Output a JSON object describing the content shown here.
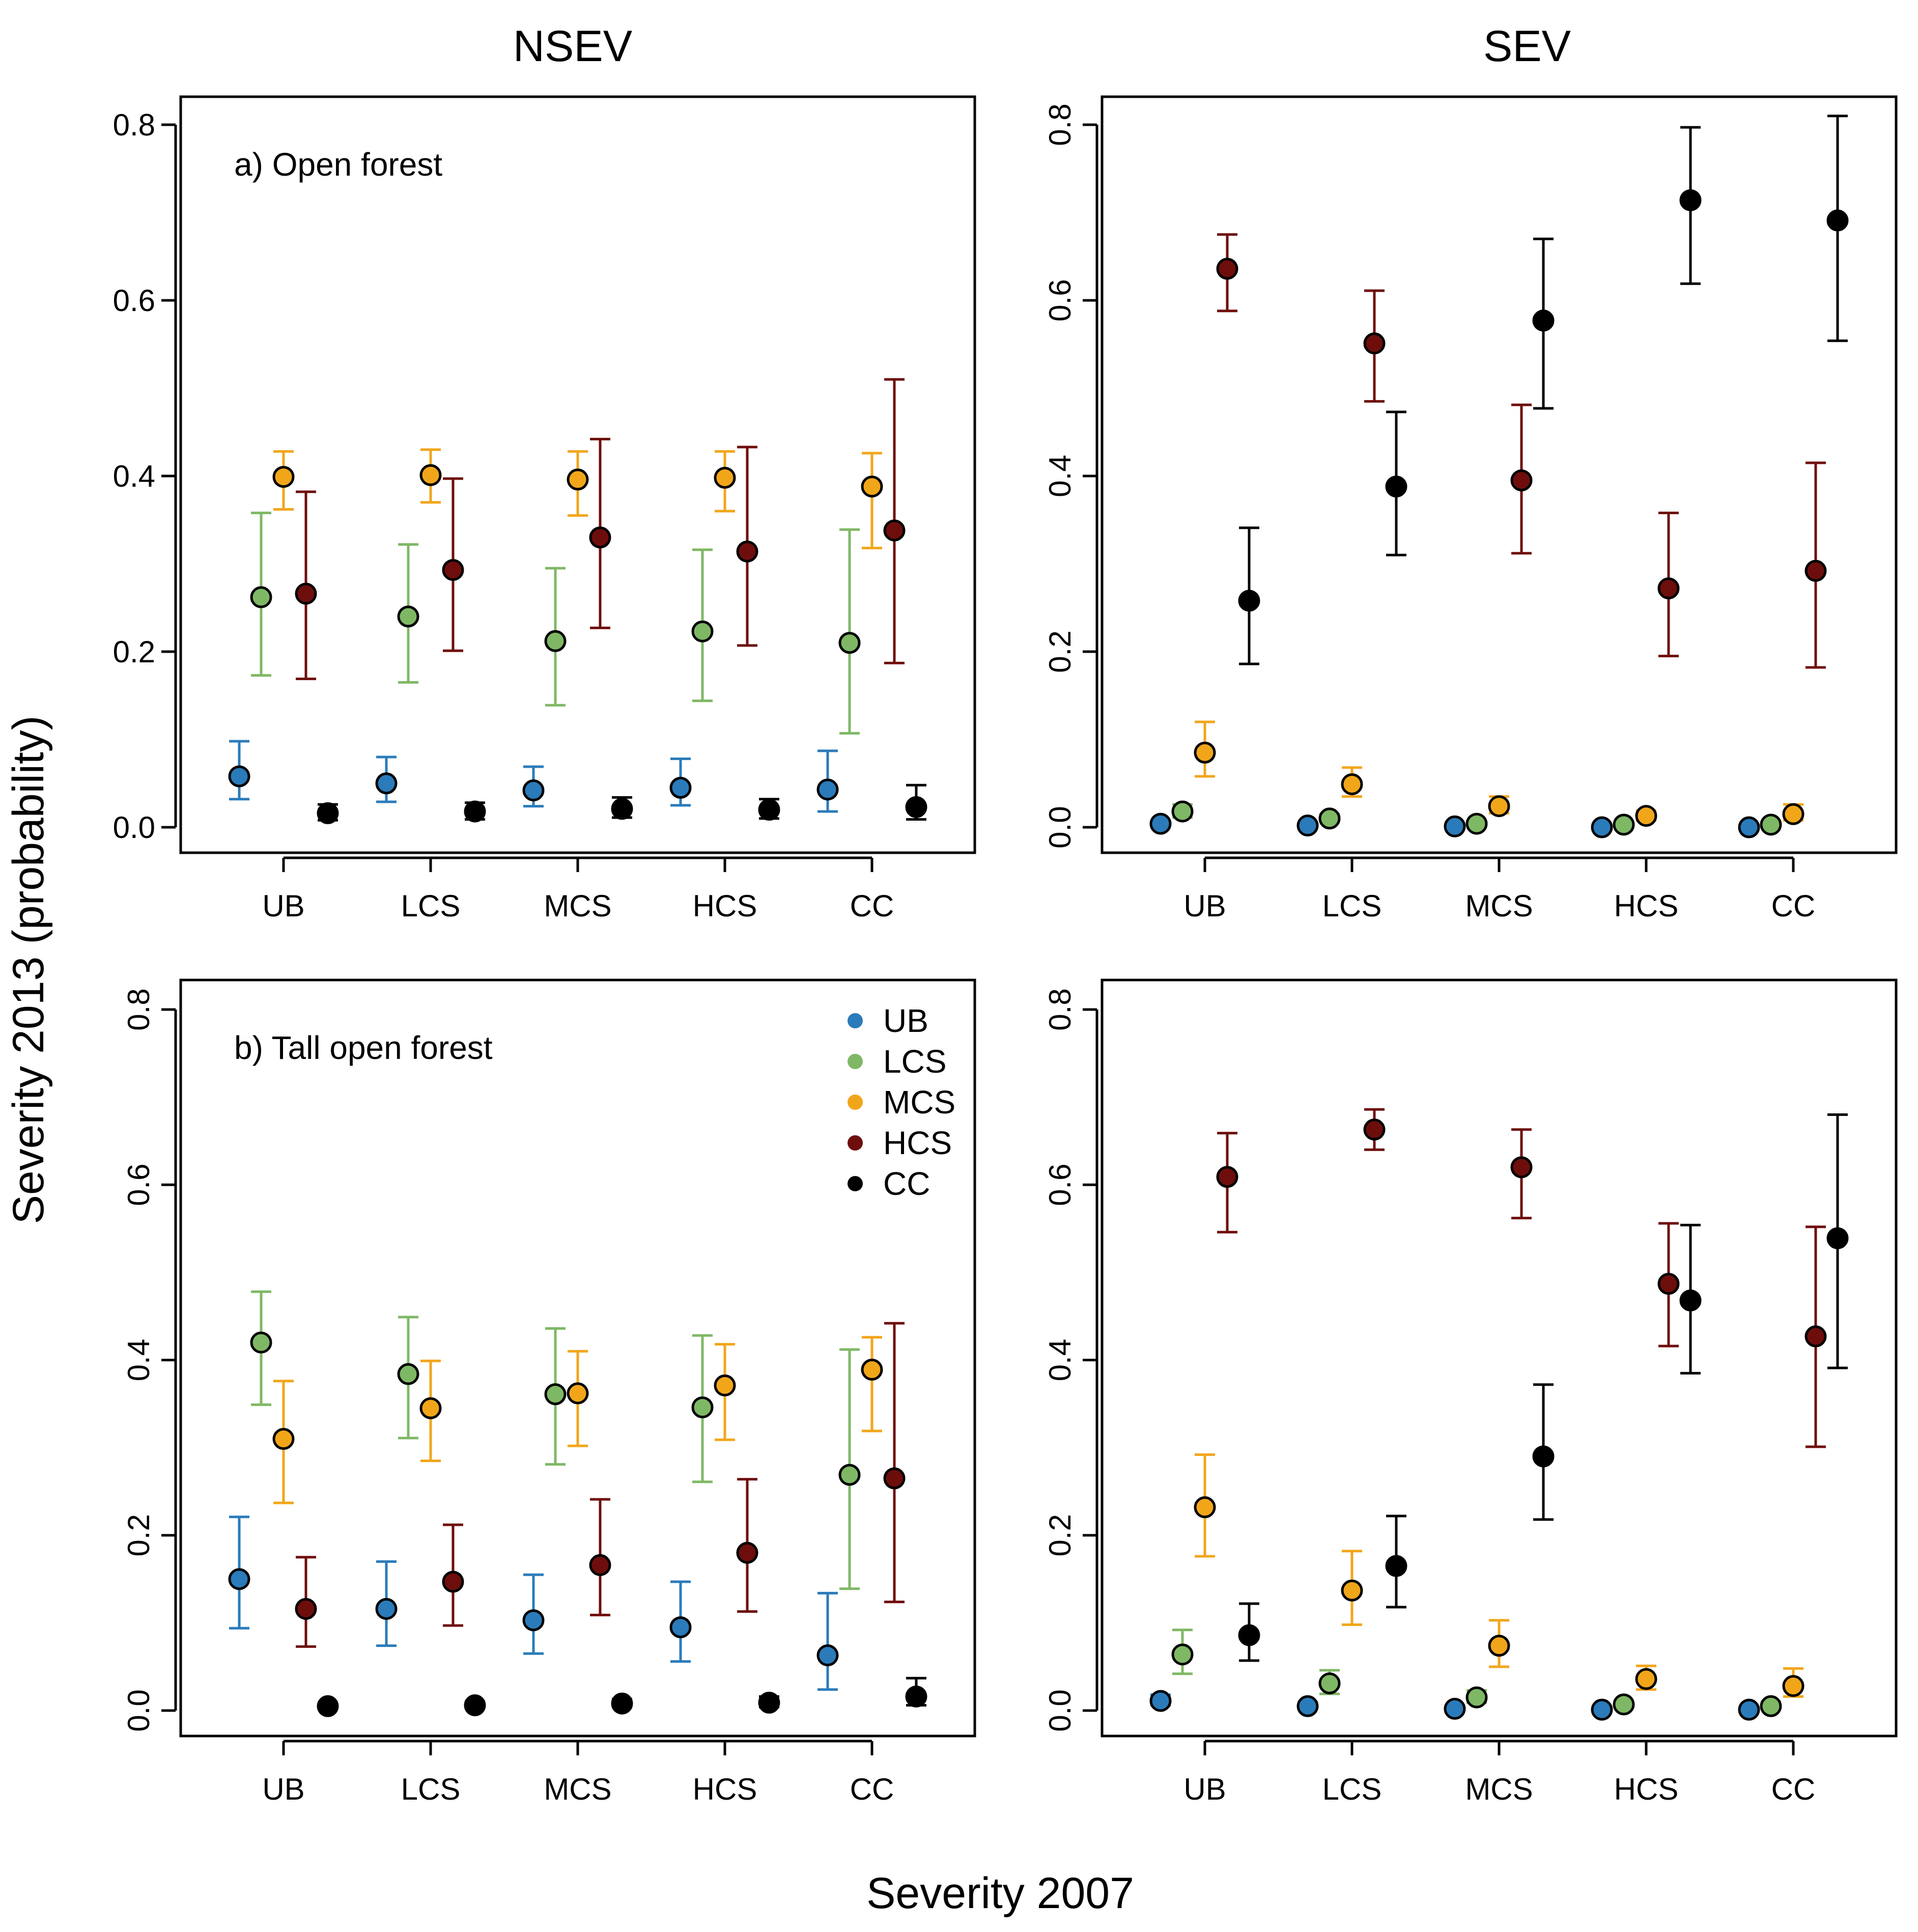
{
  "titles": {
    "left": "NSEV",
    "right": "SEV"
  },
  "ylabel": "Severity 2013 (probability)",
  "xlabel": "Severity 2007",
  "colors": {
    "UB": "#2b7bba",
    "LCS": "#7fb865",
    "MCS": "#f1a61a",
    "HCS": "#6e0e0c",
    "CC": "#000000"
  },
  "legend": [
    "UB",
    "LCS",
    "MCS",
    "HCS",
    "CC"
  ],
  "chart_data": [
    {
      "type": "scatter",
      "id": "nsev-open",
      "panel_label": "a) Open forest",
      "categories": [
        "UB",
        "LCS",
        "MCS",
        "HCS",
        "CC"
      ],
      "yticks": [
        "0.0",
        "0.2",
        "0.4",
        "0.6",
        "0.8"
      ],
      "ylim": [
        0,
        0.8
      ],
      "ytick_rotated": false,
      "series": [
        {
          "name": "UB",
          "values": [
            0.058,
            0.05,
            0.042,
            0.045,
            0.043
          ],
          "lower": [
            0.032,
            0.029,
            0.024,
            0.025,
            0.018
          ],
          "upper": [
            0.098,
            0.08,
            0.069,
            0.078,
            0.087
          ]
        },
        {
          "name": "LCS",
          "values": [
            0.262,
            0.24,
            0.212,
            0.223,
            0.21
          ],
          "lower": [
            0.173,
            0.165,
            0.139,
            0.144,
            0.107
          ],
          "upper": [
            0.358,
            0.322,
            0.295,
            0.316,
            0.339
          ]
        },
        {
          "name": "MCS",
          "values": [
            0.399,
            0.401,
            0.396,
            0.398,
            0.388
          ],
          "lower": [
            0.362,
            0.37,
            0.355,
            0.36,
            0.318
          ],
          "upper": [
            0.428,
            0.43,
            0.428,
            0.428,
            0.426
          ]
        },
        {
          "name": "HCS",
          "values": [
            0.266,
            0.293,
            0.33,
            0.314,
            0.338
          ],
          "lower": [
            0.169,
            0.201,
            0.227,
            0.207,
            0.187
          ],
          "upper": [
            0.382,
            0.397,
            0.442,
            0.433,
            0.51
          ]
        },
        {
          "name": "CC",
          "values": [
            0.016,
            0.018,
            0.021,
            0.02,
            0.023
          ],
          "lower": [
            0.008,
            0.009,
            0.011,
            0.01,
            0.009
          ],
          "upper": [
            0.026,
            0.028,
            0.034,
            0.032,
            0.048
          ]
        }
      ]
    },
    {
      "type": "scatter",
      "id": "sev-open",
      "panel_label": "",
      "categories": [
        "UB",
        "LCS",
        "MCS",
        "HCS",
        "CC"
      ],
      "yticks": [
        "0.0",
        "0.2",
        "0.4",
        "0.6",
        "0.8"
      ],
      "ylim": [
        0,
        0.8
      ],
      "ytick_rotated": true,
      "series": [
        {
          "name": "UB",
          "values": [
            0.004,
            0.002,
            0.001,
            0.0,
            0.0
          ],
          "lower": [
            0.002,
            0.001,
            0.0,
            0.0,
            0.0
          ],
          "upper": [
            0.007,
            0.004,
            0.002,
            0.001,
            0.001
          ]
        },
        {
          "name": "LCS",
          "values": [
            0.018,
            0.01,
            0.004,
            0.003,
            0.003
          ],
          "lower": [
            0.011,
            0.006,
            0.002,
            0.001,
            0.001
          ],
          "upper": [
            0.026,
            0.015,
            0.007,
            0.005,
            0.006
          ]
        },
        {
          "name": "MCS",
          "values": [
            0.085,
            0.049,
            0.024,
            0.013,
            0.015
          ],
          "lower": [
            0.058,
            0.035,
            0.016,
            0.008,
            0.008
          ],
          "upper": [
            0.12,
            0.068,
            0.035,
            0.019,
            0.026
          ]
        },
        {
          "name": "HCS",
          "values": [
            0.636,
            0.551,
            0.395,
            0.272,
            0.292
          ],
          "lower": [
            0.588,
            0.485,
            0.312,
            0.195,
            0.182
          ],
          "upper": [
            0.675,
            0.611,
            0.481,
            0.358,
            0.415
          ]
        },
        {
          "name": "CC",
          "values": [
            0.258,
            0.388,
            0.577,
            0.714,
            0.691
          ],
          "lower": [
            0.186,
            0.31,
            0.477,
            0.619,
            0.554
          ],
          "upper": [
            0.341,
            0.473,
            0.67,
            0.797,
            0.81
          ]
        }
      ]
    },
    {
      "type": "scatter",
      "id": "nsev-tall",
      "panel_label": "b) Tall open forest",
      "categories": [
        "UB",
        "LCS",
        "MCS",
        "HCS",
        "CC"
      ],
      "yticks": [
        "0.0",
        "0.2",
        "0.4",
        "0.6",
        "0.8"
      ],
      "ylim": [
        0,
        0.8
      ],
      "ytick_rotated": true,
      "series": [
        {
          "name": "UB",
          "values": [
            0.15,
            0.116,
            0.103,
            0.095,
            0.063
          ],
          "lower": [
            0.094,
            0.074,
            0.065,
            0.056,
            0.024
          ],
          "upper": [
            0.221,
            0.17,
            0.155,
            0.147,
            0.134
          ]
        },
        {
          "name": "LCS",
          "values": [
            0.42,
            0.384,
            0.361,
            0.346,
            0.269
          ],
          "lower": [
            0.349,
            0.311,
            0.281,
            0.261,
            0.139
          ],
          "upper": [
            0.478,
            0.449,
            0.436,
            0.428,
            0.412
          ]
        },
        {
          "name": "MCS",
          "values": [
            0.31,
            0.345,
            0.362,
            0.371,
            0.389
          ],
          "lower": [
            0.237,
            0.285,
            0.302,
            0.309,
            0.319
          ],
          "upper": [
            0.376,
            0.399,
            0.41,
            0.418,
            0.426
          ]
        },
        {
          "name": "HCS",
          "values": [
            0.116,
            0.147,
            0.166,
            0.18,
            0.265
          ],
          "lower": [
            0.073,
            0.097,
            0.109,
            0.113,
            0.124
          ],
          "upper": [
            0.175,
            0.212,
            0.241,
            0.264,
            0.442
          ]
        },
        {
          "name": "CC",
          "values": [
            0.005,
            0.006,
            0.008,
            0.009,
            0.016
          ],
          "lower": [
            0.003,
            0.003,
            0.004,
            0.004,
            0.006
          ],
          "upper": [
            0.008,
            0.01,
            0.013,
            0.016,
            0.037
          ]
        }
      ]
    },
    {
      "type": "scatter",
      "id": "sev-tall",
      "panel_label": "",
      "categories": [
        "UB",
        "LCS",
        "MCS",
        "HCS",
        "CC"
      ],
      "yticks": [
        "0.0",
        "0.2",
        "0.4",
        "0.6",
        "0.8"
      ],
      "ylim": [
        0,
        0.8
      ],
      "ytick_rotated": true,
      "series": [
        {
          "name": "UB",
          "values": [
            0.011,
            0.005,
            0.002,
            0.001,
            0.001
          ],
          "lower": [
            0.006,
            0.003,
            0.001,
            0.0,
            0.0
          ],
          "upper": [
            0.018,
            0.009,
            0.004,
            0.002,
            0.002
          ]
        },
        {
          "name": "LCS",
          "values": [
            0.064,
            0.031,
            0.015,
            0.007,
            0.005
          ],
          "lower": [
            0.042,
            0.019,
            0.009,
            0.004,
            0.002
          ],
          "upper": [
            0.092,
            0.046,
            0.023,
            0.011,
            0.01
          ]
        },
        {
          "name": "MCS",
          "values": [
            0.232,
            0.137,
            0.074,
            0.036,
            0.028
          ],
          "lower": [
            0.176,
            0.098,
            0.05,
            0.024,
            0.016
          ],
          "upper": [
            0.292,
            0.182,
            0.103,
            0.051,
            0.048
          ]
        },
        {
          "name": "HCS",
          "values": [
            0.609,
            0.663,
            0.62,
            0.487,
            0.427
          ],
          "lower": [
            0.546,
            0.64,
            0.562,
            0.416,
            0.301
          ],
          "upper": [
            0.659,
            0.686,
            0.663,
            0.556,
            0.552
          ]
        },
        {
          "name": "CC",
          "values": [
            0.086,
            0.165,
            0.29,
            0.468,
            0.539
          ],
          "lower": [
            0.057,
            0.118,
            0.218,
            0.385,
            0.391
          ],
          "upper": [
            0.122,
            0.222,
            0.372,
            0.554,
            0.68
          ]
        }
      ]
    }
  ]
}
